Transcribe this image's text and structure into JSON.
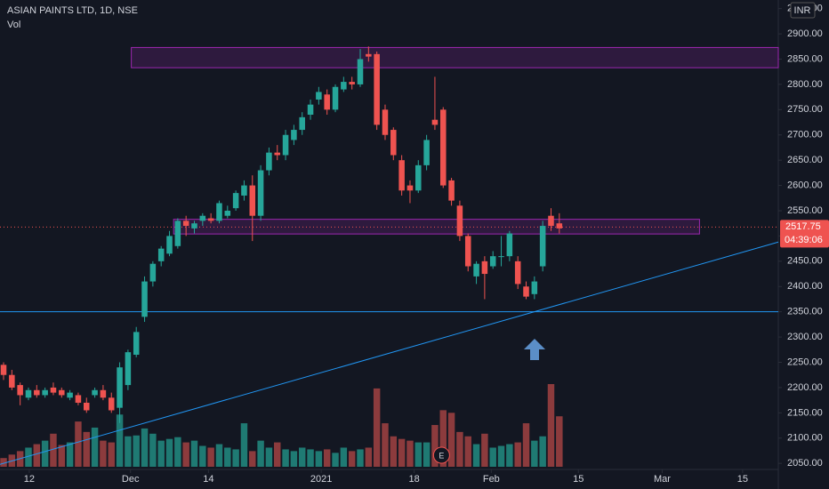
{
  "chart_data": {
    "type": "candlestick",
    "title": "ASIAN PAINTS LTD, 1D, NSE",
    "subtitle": "Vol",
    "currency": "INR",
    "up_color": "#26a69a",
    "down_color": "#ef5350",
    "volume_up_color": "#1f7a73",
    "volume_down_color": "#8c3b3d",
    "open": [
      2245,
      2225,
      2205,
      2180,
      2195,
      2185,
      2200,
      2195,
      2180,
      2185,
      2170,
      2185,
      2195,
      2180,
      2160,
      2205,
      2265,
      2340,
      2410,
      2450,
      2465,
      2480,
      2530,
      2515,
      2530,
      2535,
      2530,
      2540,
      2555,
      2580,
      2600,
      2540,
      2630,
      2665,
      2660,
      2690,
      2710,
      2740,
      2770,
      2780,
      2750,
      2790,
      2805,
      2800,
      2860,
      2860,
      2750,
      2710,
      2650,
      2600,
      2590,
      2640,
      2730,
      2750,
      2610,
      2560,
      2500,
      2420,
      2450,
      2440,
      2460,
      2460,
      2450,
      2400,
      2385,
      2440,
      2540,
      2525
    ],
    "high": [
      2250,
      2235,
      2210,
      2200,
      2205,
      2200,
      2210,
      2200,
      2195,
      2190,
      2180,
      2200,
      2205,
      2190,
      2250,
      2275,
      2320,
      2420,
      2450,
      2480,
      2510,
      2535,
      2540,
      2530,
      2545,
      2545,
      2570,
      2560,
      2590,
      2610,
      2620,
      2640,
      2675,
      2680,
      2710,
      2720,
      2745,
      2770,
      2795,
      2790,
      2800,
      2815,
      2815,
      2870,
      2875,
      2865,
      2760,
      2715,
      2660,
      2610,
      2650,
      2700,
      2815,
      2755,
      2615,
      2570,
      2505,
      2450,
      2460,
      2470,
      2500,
      2510,
      2460,
      2410,
      2420,
      2530,
      2555,
      2545
    ],
    "low": [
      2215,
      2195,
      2165,
      2175,
      2180,
      2180,
      2185,
      2180,
      2175,
      2165,
      2150,
      2180,
      2175,
      2150,
      2130,
      2195,
      2260,
      2330,
      2400,
      2440,
      2460,
      2475,
      2500,
      2505,
      2520,
      2525,
      2525,
      2535,
      2550,
      2570,
      2490,
      2530,
      2620,
      2650,
      2650,
      2680,
      2700,
      2730,
      2760,
      2740,
      2745,
      2785,
      2790,
      2795,
      2845,
      2710,
      2690,
      2650,
      2580,
      2565,
      2585,
      2630,
      2710,
      2595,
      2560,
      2490,
      2430,
      2405,
      2375,
      2435,
      2440,
      2450,
      2395,
      2375,
      2375,
      2430,
      2510,
      2505
    ],
    "close": [
      2225,
      2200,
      2185,
      2195,
      2185,
      2195,
      2190,
      2185,
      2190,
      2170,
      2155,
      2195,
      2180,
      2155,
      2240,
      2270,
      2310,
      2410,
      2445,
      2475,
      2500,
      2530,
      2520,
      2525,
      2540,
      2530,
      2565,
      2550,
      2585,
      2600,
      2540,
      2630,
      2665,
      2660,
      2700,
      2710,
      2735,
      2760,
      2785,
      2750,
      2795,
      2805,
      2800,
      2850,
      2855,
      2720,
      2700,
      2660,
      2590,
      2590,
      2640,
      2690,
      2720,
      2600,
      2570,
      2500,
      2440,
      2445,
      2425,
      2460,
      2460,
      2505,
      2405,
      2380,
      2410,
      2520,
      2520,
      2515
    ],
    "volume": [
      10,
      14,
      18,
      22,
      26,
      30,
      38,
      25,
      28,
      52,
      40,
      45,
      30,
      28,
      60,
      35,
      36,
      44,
      38,
      30,
      32,
      34,
      28,
      30,
      24,
      22,
      26,
      22,
      20,
      50,
      18,
      30,
      22,
      28,
      20,
      18,
      22,
      20,
      18,
      20,
      16,
      22,
      18,
      20,
      22,
      90,
      50,
      35,
      32,
      30,
      28,
      28,
      48,
      65,
      62,
      40,
      35,
      26,
      38,
      22,
      24,
      26,
      28,
      50,
      30,
      35,
      95,
      58
    ],
    "ylim": [
      2038,
      2967
    ],
    "yticks": [
      {
        "value": 2050,
        "label": "2050.00"
      },
      {
        "value": 2100,
        "label": "2100.00"
      },
      {
        "value": 2150,
        "label": "2150.00"
      },
      {
        "value": 2200,
        "label": "2200.00"
      },
      {
        "value": 2250,
        "label": "2250.00"
      },
      {
        "value": 2300,
        "label": "2300.00"
      },
      {
        "value": 2350,
        "label": "2350.00"
      },
      {
        "value": 2400,
        "label": "2400.00"
      },
      {
        "value": 2450,
        "label": "2450.00"
      },
      {
        "value": 2500,
        "label": "2500.00"
      },
      {
        "value": 2550,
        "label": "2550.00"
      },
      {
        "value": 2600,
        "label": "2600.00"
      },
      {
        "value": 2650,
        "label": "2650.00"
      },
      {
        "value": 2700,
        "label": "2700.00"
      },
      {
        "value": 2750,
        "label": "2750.00"
      },
      {
        "value": 2800,
        "label": "2800.00"
      },
      {
        "value": 2850,
        "label": "2850.00"
      },
      {
        "value": 2900,
        "label": "2900.00"
      },
      {
        "value": 2950,
        "label": "2950.00"
      }
    ],
    "xlim": [
      -0.43,
      93.4
    ],
    "xticks": [
      {
        "value": 3.1,
        "label": "12"
      },
      {
        "value": 15.3,
        "label": "Dec"
      },
      {
        "value": 24.7,
        "label": "14"
      },
      {
        "value": 38.3,
        "label": "2021"
      },
      {
        "value": 49.5,
        "label": "18"
      },
      {
        "value": 58.8,
        "label": "Feb"
      },
      {
        "value": 69.3,
        "label": "15"
      },
      {
        "value": 79.4,
        "label": "Mar"
      },
      {
        "value": 89.1,
        "label": "15"
      }
    ],
    "zones": [
      {
        "top": 2873,
        "bottom": 2833,
        "x_start": 15.4,
        "x_end": 93.4
      },
      {
        "top": 2533,
        "bottom": 2504,
        "x_start": 20.5,
        "x_end": 83.9
      }
    ],
    "zone_color": "#9c27b0",
    "horizontal_line": 2350,
    "line_color": "#2196f3",
    "trendline": {
      "x": [
        -0.43,
        93.4
      ],
      "y": [
        2048,
        2488
      ]
    },
    "last_price": {
      "value": 2517.75,
      "label": "2517.75"
    },
    "countdown": "04:39:06",
    "earnings_marker": {
      "x": 52.8,
      "label": "E"
    }
  }
}
